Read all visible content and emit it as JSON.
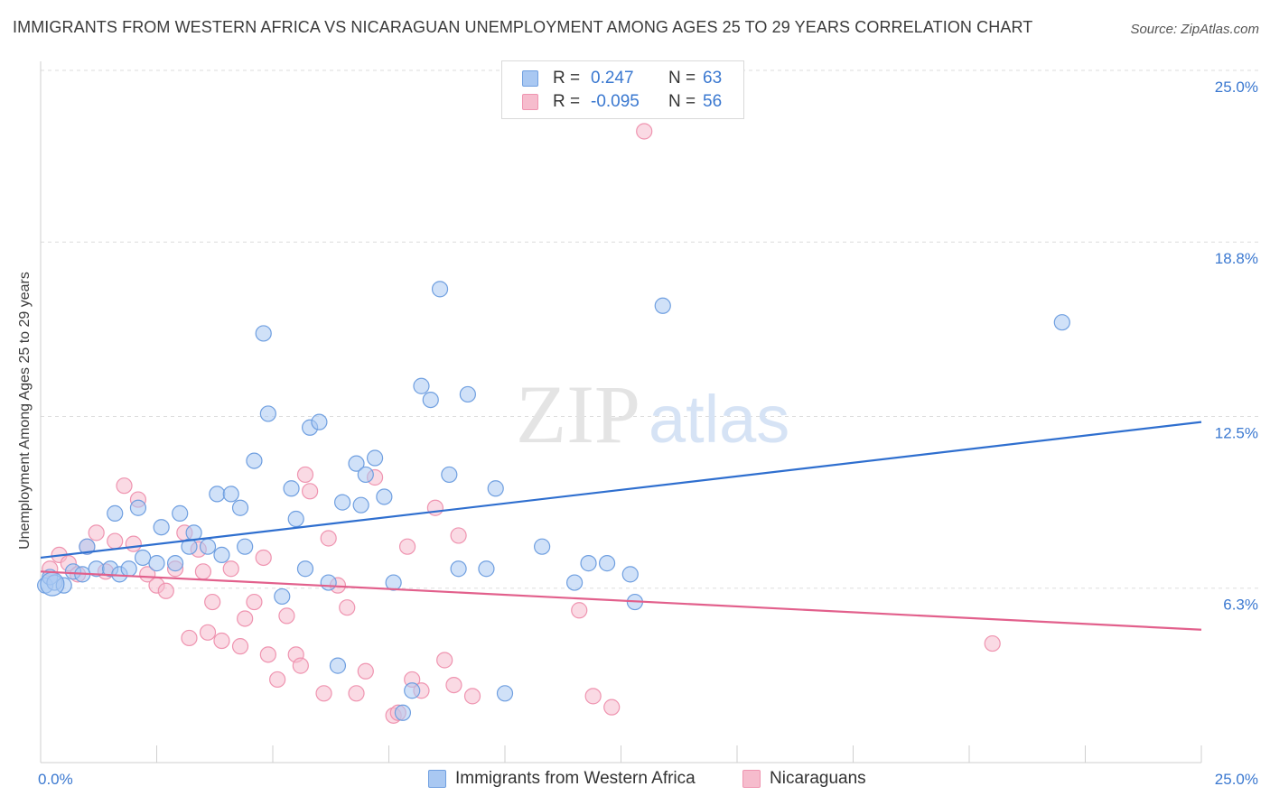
{
  "title": "IMMIGRANTS FROM WESTERN AFRICA VS NICARAGUAN UNEMPLOYMENT AMONG AGES 25 TO 29 YEARS CORRELATION CHART",
  "source": "Source: ZipAtlas.com",
  "watermark": {
    "zip": "ZIP",
    "atlas": "atlas"
  },
  "legend": {
    "rows": [
      {
        "r_label": "R =",
        "r_value": "0.247",
        "n_label": "N =",
        "n_value": "63"
      },
      {
        "r_label": "R =",
        "r_value": "-0.095",
        "n_label": "N =",
        "n_value": "56"
      }
    ]
  },
  "bottom_legend": {
    "series1": "Immigrants from Western Africa",
    "series2": "Nicaraguans"
  },
  "colors": {
    "blue_fill": "#a9c8f2",
    "blue_stroke": "#6f9fe0",
    "blue_line": "#2f6fcf",
    "pink_fill": "#f6bccd",
    "pink_stroke": "#ef94b0",
    "pink_line": "#e2608c",
    "axis_label": "#3a78d0",
    "grid": "#dedede"
  },
  "chart_data": {
    "type": "scatter",
    "xlabel": "",
    "ylabel": "Unemployment Among Ages 25 to 29 years",
    "xlim": [
      0,
      25
    ],
    "ylim": [
      0,
      25.0
    ],
    "x_tick_labels": [
      "0.0%",
      "25.0%"
    ],
    "y_ticks": [
      6.3,
      12.5,
      18.8,
      25.0
    ],
    "y_tick_labels": [
      "6.3%",
      "12.5%",
      "18.8%",
      "25.0%"
    ],
    "grid": "horizontal dashed",
    "legend_position": "top-center",
    "series": [
      {
        "name": "Immigrants from Western Africa",
        "color": "#a9c8f2",
        "trend": {
          "x": [
            0,
            25
          ],
          "y": [
            7.4,
            12.3
          ]
        },
        "points": [
          [
            0.1,
            6.4
          ],
          [
            0.2,
            6.7
          ],
          [
            0.3,
            6.5
          ],
          [
            0.5,
            6.4
          ],
          [
            0.7,
            6.9
          ],
          [
            0.9,
            6.8
          ],
          [
            1.0,
            7.8
          ],
          [
            1.2,
            7.0
          ],
          [
            1.5,
            7.0
          ],
          [
            1.6,
            9.0
          ],
          [
            1.7,
            6.8
          ],
          [
            1.9,
            7.0
          ],
          [
            2.1,
            9.2
          ],
          [
            2.2,
            7.4
          ],
          [
            2.5,
            7.2
          ],
          [
            2.6,
            8.5
          ],
          [
            2.9,
            7.2
          ],
          [
            3.0,
            9.0
          ],
          [
            3.2,
            7.8
          ],
          [
            3.3,
            8.3
          ],
          [
            3.6,
            7.8
          ],
          [
            3.8,
            9.7
          ],
          [
            3.9,
            7.5
          ],
          [
            4.1,
            9.7
          ],
          [
            4.3,
            9.2
          ],
          [
            4.4,
            7.8
          ],
          [
            4.6,
            10.9
          ],
          [
            4.8,
            15.5
          ],
          [
            4.9,
            12.6
          ],
          [
            5.2,
            6.0
          ],
          [
            5.4,
            9.9
          ],
          [
            5.5,
            8.8
          ],
          [
            5.7,
            7.0
          ],
          [
            5.8,
            12.1
          ],
          [
            6.0,
            12.3
          ],
          [
            6.2,
            6.5
          ],
          [
            6.4,
            3.5
          ],
          [
            6.5,
            9.4
          ],
          [
            6.8,
            10.8
          ],
          [
            6.9,
            9.3
          ],
          [
            7.0,
            10.4
          ],
          [
            7.2,
            11.0
          ],
          [
            7.4,
            9.6
          ],
          [
            7.6,
            6.5
          ],
          [
            7.8,
            1.8
          ],
          [
            8.0,
            2.6
          ],
          [
            8.2,
            13.6
          ],
          [
            8.4,
            13.1
          ],
          [
            8.6,
            17.1
          ],
          [
            8.8,
            10.4
          ],
          [
            9.0,
            7.0
          ],
          [
            9.2,
            13.3
          ],
          [
            9.6,
            7.0
          ],
          [
            9.8,
            9.9
          ],
          [
            10.0,
            2.5
          ],
          [
            10.8,
            7.8
          ],
          [
            11.5,
            6.5
          ],
          [
            11.8,
            7.2
          ],
          [
            12.2,
            7.2
          ],
          [
            12.7,
            6.8
          ],
          [
            12.8,
            5.8
          ],
          [
            13.4,
            16.5
          ],
          [
            22.0,
            15.9
          ]
        ]
      },
      {
        "name": "Nicaraguans",
        "color": "#f6bccd",
        "trend": {
          "x": [
            0,
            25
          ],
          "y": [
            6.9,
            4.8
          ]
        },
        "points": [
          [
            0.2,
            7.0
          ],
          [
            0.4,
            7.5
          ],
          [
            0.6,
            7.2
          ],
          [
            0.8,
            6.8
          ],
          [
            1.0,
            7.8
          ],
          [
            1.2,
            8.3
          ],
          [
            1.4,
            6.9
          ],
          [
            1.6,
            8.0
          ],
          [
            1.8,
            10.0
          ],
          [
            2.0,
            7.9
          ],
          [
            2.1,
            9.5
          ],
          [
            2.3,
            6.8
          ],
          [
            2.5,
            6.4
          ],
          [
            2.7,
            6.2
          ],
          [
            2.9,
            7.0
          ],
          [
            3.1,
            8.3
          ],
          [
            3.2,
            4.5
          ],
          [
            3.4,
            7.7
          ],
          [
            3.5,
            6.9
          ],
          [
            3.6,
            4.7
          ],
          [
            3.7,
            5.8
          ],
          [
            3.9,
            4.4
          ],
          [
            4.1,
            7.0
          ],
          [
            4.3,
            4.2
          ],
          [
            4.4,
            5.2
          ],
          [
            4.6,
            5.8
          ],
          [
            4.8,
            7.4
          ],
          [
            4.9,
            3.9
          ],
          [
            5.1,
            3.0
          ],
          [
            5.3,
            5.3
          ],
          [
            5.5,
            3.9
          ],
          [
            5.6,
            3.5
          ],
          [
            5.7,
            10.4
          ],
          [
            5.8,
            9.8
          ],
          [
            6.1,
            2.5
          ],
          [
            6.2,
            8.1
          ],
          [
            6.4,
            6.4
          ],
          [
            6.6,
            5.6
          ],
          [
            6.8,
            2.5
          ],
          [
            7.0,
            3.3
          ],
          [
            7.2,
            10.3
          ],
          [
            7.6,
            1.7
          ],
          [
            7.9,
            7.8
          ],
          [
            8.0,
            3.0
          ],
          [
            8.2,
            2.6
          ],
          [
            8.5,
            9.2
          ],
          [
            8.7,
            3.7
          ],
          [
            8.9,
            2.8
          ],
          [
            9.0,
            8.2
          ],
          [
            9.3,
            2.4
          ],
          [
            11.6,
            5.5
          ],
          [
            11.9,
            2.4
          ],
          [
            12.3,
            2.0
          ],
          [
            13.0,
            22.8
          ],
          [
            20.5,
            4.3
          ],
          [
            7.7,
            1.8
          ]
        ]
      }
    ]
  }
}
